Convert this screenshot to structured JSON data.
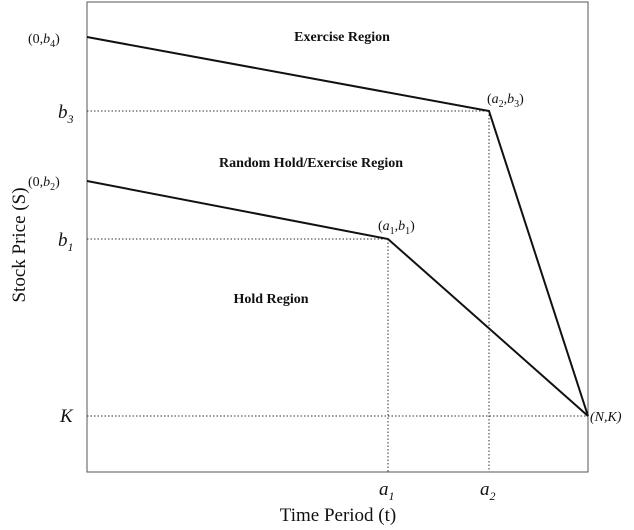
{
  "diagram": {
    "axes": {
      "x_label": "Time Period (t)",
      "y_label": "Stock Price (S)",
      "x_ticks": [
        {
          "base": "a",
          "sub": "1"
        },
        {
          "base": "a",
          "sub": "2"
        }
      ],
      "y_ticks": [
        {
          "base": "b",
          "sub": "3"
        },
        {
          "base": "b",
          "sub": "1"
        },
        {
          "base": "K",
          "sub": ""
        }
      ]
    },
    "regions": {
      "exercise": "Exercise Region",
      "random": "Random Hold/Exercise Region",
      "hold": "Hold Region"
    },
    "point_labels": {
      "b4_start": {
        "pre": "(0,",
        "var": "b",
        "sub": "4",
        "post": ")"
      },
      "b2_start": {
        "pre": "(0,",
        "var": "b",
        "sub": "2",
        "post": ")"
      },
      "a1b1": {
        "v1": "a",
        "s1": "1",
        "mid": ",",
        "v2": "b",
        "s2": "1"
      },
      "a2b3": {
        "v1": "a",
        "s1": "2",
        "mid": ",",
        "v2": "b",
        "s2": "3"
      },
      "nk": "(N,K)"
    },
    "colors": {
      "line": "#111111",
      "guide": "#333333",
      "frame": "#555555"
    }
  }
}
